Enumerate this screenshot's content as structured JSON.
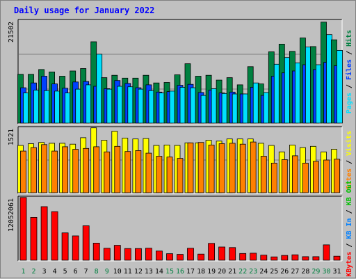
{
  "title": "Daily usage for January 2022",
  "colors": {
    "hits": "#008040",
    "files": "#0040ff",
    "pages": "#00e0ff",
    "visits": "#ffff00",
    "sites": "#ff8000",
    "kb_in": "#0080ff",
    "kb_out": "#00c000",
    "kbytes": "#ff0000",
    "panel_bg": "#c0c0c0",
    "grid": "#808080",
    "weekday_tick": "#000000",
    "weekend_tick": "#008040"
  },
  "chart_data": [
    {
      "type": "bar",
      "ytick_label": "21502",
      "ylim": [
        0,
        21502
      ],
      "right_label": [
        {
          "text": "Pages",
          "color": "#00e0ff"
        },
        {
          "text": " / ",
          "color": "#000000"
        },
        {
          "text": "Files",
          "color": "#0040ff"
        },
        {
          "text": " / ",
          "color": "#000000"
        },
        {
          "text": "Hits",
          "color": "#008040"
        }
      ],
      "series": [
        {
          "name": "Hits",
          "color": "#008040",
          "values": [
            10200,
            10200,
            11200,
            10700,
            9800,
            10900,
            11400,
            17000,
            9500,
            10000,
            9400,
            9400,
            10000,
            8400,
            8500,
            10100,
            12400,
            9800,
            10000,
            9000,
            9500,
            8000,
            11800,
            8200,
            14900,
            16500,
            15000,
            17800,
            16000,
            21100,
            17400
          ]
        },
        {
          "name": "Files",
          "color": "#0040ff",
          "values": [
            7400,
            8400,
            9800,
            8200,
            7300,
            8600,
            8700,
            7700,
            7200,
            8900,
            8300,
            7400,
            8000,
            6500,
            6600,
            7900,
            8100,
            6400,
            6900,
            6300,
            6500,
            6100,
            7500,
            5800,
            9800,
            10500,
            10900,
            12200,
            11200,
            12700,
            12000
          ]
        },
        {
          "name": "Pages",
          "color": "#00e0ff",
          "values": [
            6300,
            6900,
            6800,
            6700,
            6300,
            7100,
            8000,
            14400,
            7100,
            7700,
            7600,
            7100,
            6800,
            6300,
            6700,
            7500,
            7400,
            5800,
            7200,
            6200,
            6100,
            6100,
            8400,
            6400,
            12300,
            13700,
            12600,
            15900,
            12200,
            18500,
            15200
          ]
        }
      ]
    },
    {
      "type": "bar",
      "ytick_label": "1521",
      "ylim": [
        0,
        1521
      ],
      "right_label": [
        {
          "text": "Sites",
          "color": "#ff8000"
        },
        {
          "text": " / ",
          "color": "#000000"
        },
        {
          "text": "Visits",
          "color": "#ffff00"
        }
      ],
      "series": [
        {
          "name": "Visits",
          "color": "#ffff00",
          "values": [
            1100,
            1140,
            1170,
            1150,
            1150,
            1130,
            1280,
            1510,
            1220,
            1430,
            1270,
            1250,
            1260,
            1100,
            1110,
            1100,
            1160,
            1160,
            1220,
            1200,
            1250,
            1250,
            1250,
            1150,
            1100,
            950,
            1110,
            1050,
            1080,
            950,
            1010
          ]
        },
        {
          "name": "Sites",
          "color": "#ff8000",
          "values": [
            970,
            1050,
            1120,
            970,
            1070,
            1010,
            1030,
            1070,
            950,
            1080,
            960,
            980,
            920,
            850,
            830,
            800,
            1160,
            1170,
            1110,
            1140,
            1150,
            1130,
            1180,
            850,
            690,
            770,
            860,
            690,
            730,
            760,
            780
          ]
        }
      ]
    },
    {
      "type": "bar",
      "ytick_label": "12052061",
      "ylim": [
        0,
        12052061
      ],
      "right_label": [
        {
          "text": "KBytes",
          "color": "#ff0000"
        },
        {
          "text": " / ",
          "color": "#000000"
        },
        {
          "text": "KB In",
          "color": "#0080ff"
        },
        {
          "text": " / ",
          "color": "#000000"
        },
        {
          "text": "KB Out",
          "color": "#00c000"
        }
      ],
      "series": [
        {
          "name": "KBytes",
          "color": "#ff0000",
          "values": [
            11950000,
            8160000,
            10200000,
            9250000,
            5210000,
            4630000,
            6550000,
            3260000,
            2280000,
            2830000,
            2230000,
            2230000,
            2290000,
            1750000,
            1240000,
            1110000,
            2280000,
            1170000,
            3210000,
            2510000,
            2410000,
            1290000,
            1340000,
            970000,
            640000,
            910000,
            1030000,
            680000,
            680000,
            2930000,
            770000
          ]
        }
      ]
    }
  ],
  "days": [
    "1",
    "2",
    "3",
    "4",
    "5",
    "6",
    "7",
    "8",
    "9",
    "10",
    "11",
    "12",
    "13",
    "14",
    "15",
    "16",
    "17",
    "18",
    "19",
    "20",
    "21",
    "22",
    "23",
    "24",
    "25",
    "26",
    "27",
    "28",
    "29",
    "30",
    "31"
  ],
  "weekend_days": [
    "1",
    "2",
    "8",
    "9",
    "15",
    "16",
    "22",
    "23",
    "29",
    "30"
  ]
}
